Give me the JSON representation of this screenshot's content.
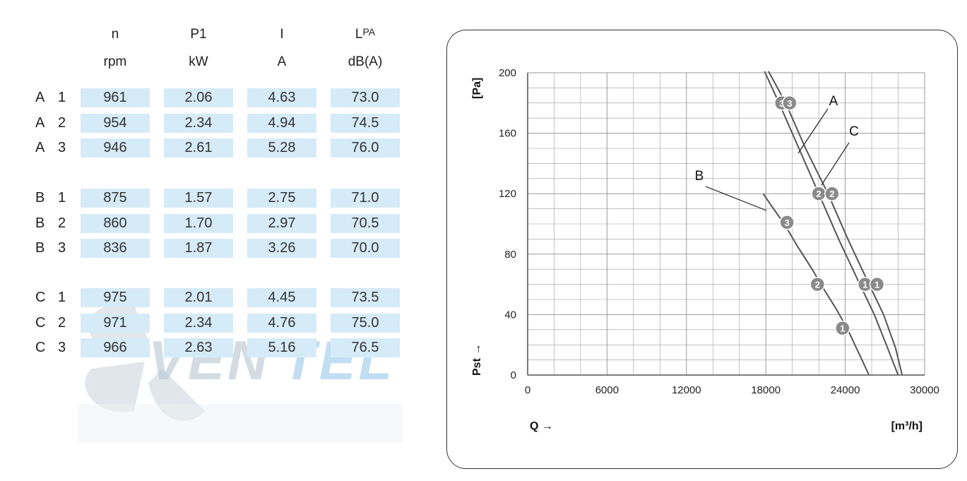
{
  "table": {
    "headers": [
      {
        "name": "n",
        "unit": "rpm"
      },
      {
        "name": "P1",
        "unit": "kW"
      },
      {
        "name": "I",
        "unit": "A"
      },
      {
        "name": "L",
        "sub": "PA",
        "unit": "dB(A)"
      }
    ],
    "groups": [
      {
        "rows": [
          {
            "fan": "A",
            "point": "1",
            "values": [
              "961",
              "2.06",
              "4.63",
              "73.0"
            ]
          },
          {
            "fan": "A",
            "point": "2",
            "values": [
              "954",
              "2.34",
              "4.94",
              "74.5"
            ]
          },
          {
            "fan": "A",
            "point": "3",
            "values": [
              "946",
              "2.61",
              "5.28",
              "76.0"
            ]
          }
        ]
      },
      {
        "rows": [
          {
            "fan": "B",
            "point": "1",
            "values": [
              "875",
              "1.57",
              "2.75",
              "71.0"
            ]
          },
          {
            "fan": "B",
            "point": "2",
            "values": [
              "860",
              "1.70",
              "2.97",
              "70.5"
            ]
          },
          {
            "fan": "B",
            "point": "3",
            "values": [
              "836",
              "1.87",
              "3.26",
              "70.0"
            ]
          }
        ]
      },
      {
        "rows": [
          {
            "fan": "C",
            "point": "1",
            "values": [
              "975",
              "2.01",
              "4.45",
              "73.5"
            ]
          },
          {
            "fan": "C",
            "point": "2",
            "values": [
              "971",
              "2.34",
              "4.76",
              "75.0"
            ]
          },
          {
            "fan": "C",
            "point": "3",
            "values": [
              "966",
              "2.63",
              "5.16",
              "76.5"
            ]
          }
        ]
      }
    ]
  },
  "watermark": {
    "text": "VENTEL"
  },
  "colors": {
    "cell_bg": "#d6ebf8",
    "curve": "#555555",
    "marker": "#8a8a8a",
    "grid": "#9a9a9a"
  },
  "chart_data": {
    "type": "line",
    "xlabel": "Q →",
    "xunit": "[m³/h]",
    "ylabel": "Pst →",
    "yunit": "[Pa]",
    "xlim": [
      0,
      30000
    ],
    "ylim": [
      0,
      200
    ],
    "xticks": [
      0,
      6000,
      12000,
      18000,
      24000,
      30000
    ],
    "yticks": [
      0,
      40,
      80,
      120,
      160,
      200
    ],
    "grid": true,
    "series": [
      {
        "name": "A",
        "points": [
          [
            17900,
            201
          ],
          [
            19000,
            180
          ],
          [
            20500,
            150
          ],
          [
            22000,
            120
          ],
          [
            23500,
            90
          ],
          [
            25000,
            62
          ],
          [
            26200,
            40
          ],
          [
            27200,
            18
          ],
          [
            28000,
            0
          ]
        ]
      },
      {
        "name": "C",
        "points": [
          [
            18200,
            201
          ],
          [
            19500,
            180
          ],
          [
            21000,
            150
          ],
          [
            22700,
            120
          ],
          [
            24200,
            90
          ],
          [
            25700,
            62
          ],
          [
            26900,
            40
          ],
          [
            27800,
            18
          ],
          [
            28300,
            0
          ]
        ]
      },
      {
        "name": "B",
        "points": [
          [
            17800,
            120
          ],
          [
            18500,
            111
          ],
          [
            19400,
            100
          ],
          [
            20400,
            85
          ],
          [
            21500,
            70
          ],
          [
            22300,
            58
          ],
          [
            23300,
            44
          ],
          [
            24200,
            30
          ],
          [
            25000,
            15
          ],
          [
            25800,
            0
          ]
        ]
      }
    ],
    "markers": [
      {
        "label": "3",
        "x": 19200,
        "y": 180
      },
      {
        "label": "3",
        "x": 19800,
        "y": 180
      },
      {
        "label": "2",
        "x": 22000,
        "y": 120
      },
      {
        "label": "2",
        "x": 23000,
        "y": 120
      },
      {
        "label": "1",
        "x": 25500,
        "y": 60
      },
      {
        "label": "1",
        "x": 26400,
        "y": 60
      },
      {
        "label": "3",
        "x": 19600,
        "y": 101
      },
      {
        "label": "2",
        "x": 21900,
        "y": 60
      },
      {
        "label": "1",
        "x": 23800,
        "y": 31
      }
    ],
    "annotations": [
      {
        "text": "A",
        "series": "A"
      },
      {
        "text": "C",
        "series": "C"
      },
      {
        "text": "B",
        "series": "B"
      }
    ]
  }
}
